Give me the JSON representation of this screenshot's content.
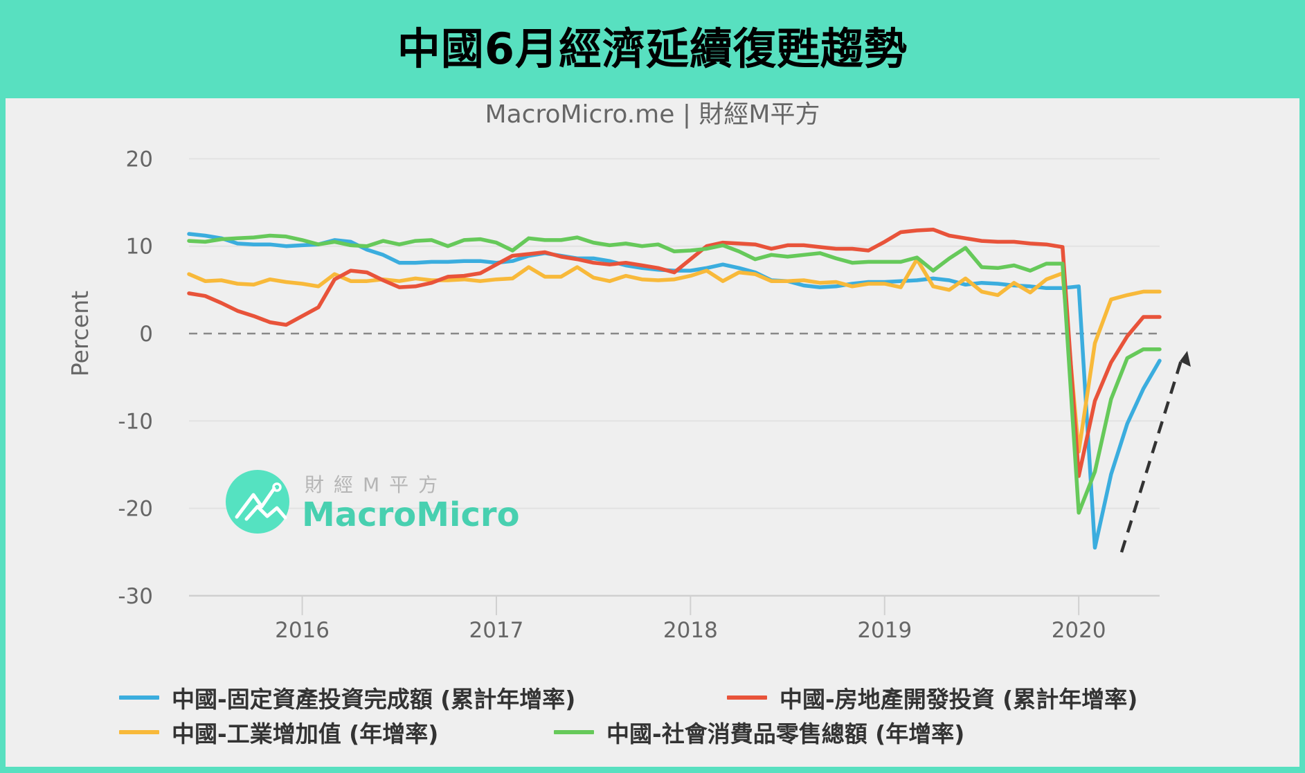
{
  "header": {
    "title": "中國6月經濟延續復甦趨勢"
  },
  "chart": {
    "subtitle": "MacroMicro.me | 財經M平方",
    "watermark": {
      "cn": "財經M平方",
      "en": "MacroMicro",
      "icon": "macromicro-logo-icon"
    },
    "annotation": {
      "type": "dashed-arrow-up",
      "color": "#333333"
    }
  },
  "colors": {
    "header_bg": "#58e0c0",
    "card_bg": "#efefef",
    "blue": "#3badde",
    "red": "#e8533a",
    "yellow": "#f8b93a",
    "green": "#66c95a"
  },
  "chart_data": {
    "type": "line",
    "title": "中國6月經濟延續復甦趨勢",
    "subtitle": "MacroMicro.me | 財經M平方",
    "xlabel": "",
    "ylabel": "Percent",
    "ylim": [
      -30,
      20
    ],
    "yticks": [
      20,
      10,
      0,
      -10,
      -20,
      -30
    ],
    "xticks": [
      "2016",
      "2017",
      "2018",
      "2019",
      "2020"
    ],
    "x_start": "2015-06",
    "x_end": "2020-06",
    "frequency": "monthly",
    "grid": true,
    "zero_line": "dashed",
    "legend_position": "bottom",
    "series": [
      {
        "name": "中國-固定資產投資完成額 (累計年增率)",
        "color": "#3badde",
        "values": [
          11.4,
          11.2,
          10.9,
          10.3,
          10.2,
          10.2,
          10.0,
          10.1,
          10.2,
          10.7,
          10.5,
          9.6,
          9.0,
          8.1,
          8.1,
          8.2,
          8.2,
          8.3,
          8.3,
          8.1,
          8.3,
          8.9,
          9.2,
          8.9,
          8.6,
          8.6,
          8.3,
          7.8,
          7.5,
          7.3,
          7.2,
          7.2,
          7.5,
          7.9,
          7.5,
          7.0,
          6.1,
          6.0,
          5.5,
          5.3,
          5.4,
          5.7,
          5.9,
          5.9,
          6.0,
          6.1,
          6.3,
          6.1,
          5.6,
          5.8,
          5.7,
          5.5,
          5.4,
          5.2,
          5.2,
          5.4,
          -24.5,
          -16.1,
          -10.3,
          -6.3,
          -3.1
        ]
      },
      {
        "name": "中國-房地產開發投資 (累計年增率)",
        "color": "#e8533a",
        "values": [
          4.6,
          4.3,
          3.5,
          2.6,
          2.0,
          1.3,
          1.0,
          2.0,
          3.0,
          6.2,
          7.2,
          7.0,
          6.1,
          5.3,
          5.4,
          5.8,
          6.5,
          6.6,
          6.9,
          7.9,
          8.9,
          9.1,
          9.3,
          8.8,
          8.5,
          8.1,
          7.9,
          8.1,
          7.8,
          7.5,
          7.0,
          8.5,
          10.0,
          10.4,
          10.3,
          10.2,
          9.7,
          10.1,
          10.1,
          9.9,
          9.7,
          9.7,
          9.5,
          10.5,
          11.6,
          11.8,
          11.9,
          11.2,
          10.9,
          10.6,
          10.5,
          10.5,
          10.3,
          10.2,
          9.9,
          -16.3,
          -7.7,
          -3.3,
          -0.3,
          1.9,
          1.9
        ]
      },
      {
        "name": "中國-工業增加值 (年增率)",
        "color": "#f8b93a",
        "values": [
          6.8,
          6.0,
          6.1,
          5.7,
          5.6,
          6.2,
          5.9,
          5.7,
          5.4,
          6.8,
          6.0,
          6.0,
          6.2,
          6.0,
          6.3,
          6.1,
          6.1,
          6.2,
          6.0,
          6.2,
          6.3,
          7.6,
          6.5,
          6.5,
          7.6,
          6.4,
          6.0,
          6.6,
          6.2,
          6.1,
          6.2,
          6.6,
          7.2,
          6.0,
          7.0,
          6.8,
          6.0,
          6.0,
          6.1,
          5.8,
          5.9,
          5.4,
          5.7,
          5.7,
          5.3,
          8.5,
          5.4,
          5.0,
          6.3,
          4.8,
          4.4,
          5.8,
          4.7,
          6.2,
          6.9,
          -13.5,
          -1.1,
          3.9,
          4.4,
          4.8,
          4.8
        ]
      },
      {
        "name": "中國-社會消費品零售總額 (年增率)",
        "color": "#66c95a",
        "values": [
          10.6,
          10.5,
          10.8,
          10.9,
          11.0,
          11.2,
          11.1,
          10.7,
          10.2,
          10.5,
          10.1,
          10.0,
          10.6,
          10.2,
          10.6,
          10.7,
          10.0,
          10.7,
          10.8,
          10.4,
          9.5,
          10.9,
          10.7,
          10.7,
          11.0,
          10.4,
          10.1,
          10.3,
          10.0,
          10.2,
          9.4,
          9.5,
          9.7,
          10.1,
          9.4,
          8.5,
          9.0,
          8.8,
          9.0,
          9.2,
          8.6,
          8.1,
          8.2,
          8.2,
          8.2,
          8.7,
          7.2,
          8.6,
          9.8,
          7.6,
          7.5,
          7.8,
          7.2,
          8.0,
          8.0,
          -20.5,
          -15.8,
          -7.5,
          -2.8,
          -1.8,
          -1.8
        ]
      }
    ]
  },
  "legend": {
    "items": [
      {
        "label": "中國-固定資產投資完成額 (累計年增率)",
        "color": "#3badde"
      },
      {
        "label": "中國-房地產開發投資 (累計年增率)",
        "color": "#e8533a"
      },
      {
        "label": "中國-工業增加值 (年增率)",
        "color": "#f8b93a"
      },
      {
        "label": "中國-社會消費品零售總額 (年增率)",
        "color": "#66c95a"
      }
    ]
  }
}
